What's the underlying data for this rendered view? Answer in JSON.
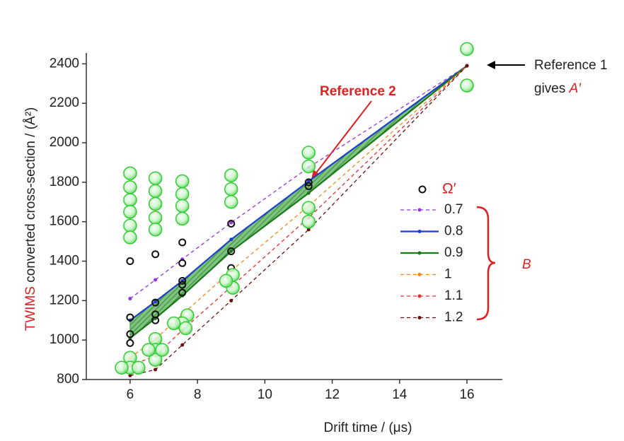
{
  "chart_data": {
    "type": "line",
    "x_label": "Drift time / (μs)",
    "y_label_prefix": "TWIMS",
    "y_label": " converted cross-section / (Å²)",
    "xlim": [
      4.7,
      17.05
    ],
    "ylim": [
      800,
      2455
    ],
    "xticks": [
      6,
      8,
      10,
      12,
      14,
      16
    ],
    "yticks": [
      800,
      1000,
      1200,
      1400,
      1600,
      1800,
      2000,
      2200,
      2400
    ],
    "x": [
      6,
      6.75,
      7.55,
      9,
      11.3,
      16
    ],
    "band_fill": "#3a9a3a",
    "series": [
      {
        "name": "Ω′",
        "type": "scatter",
        "color": "#111111",
        "x": [
          6,
          6,
          6,
          6,
          6.75,
          6.75,
          6.75,
          6.75,
          7.55,
          7.55,
          7.55,
          7.55,
          7.55,
          9,
          9,
          9,
          11.3,
          11.3
        ],
        "values": [
          1400,
          1115,
          1030,
          985,
          1435,
          1190,
          1130,
          1100,
          1495,
          1390,
          1300,
          1280,
          1240,
          1590,
          1450,
          1365,
          1800,
          1780
        ]
      },
      {
        "name": "0.7",
        "color": "#9a33e0",
        "dash": true,
        "values": [
          1210,
          1305,
          1410,
          1595,
          1875,
          2390
        ]
      },
      {
        "name": "0.8",
        "color": "#1f3fcc",
        "dash": false,
        "values": [
          1100,
          1195,
          1300,
          1510,
          1805,
          2390
        ]
      },
      {
        "name": "0.9",
        "color": "#1a7a1a",
        "dash": false,
        "values": [
          1010,
          1110,
          1225,
          1450,
          1745,
          2390
        ]
      },
      {
        "name": "1",
        "color": "#f08a20",
        "dash": true,
        "values": [
          910,
          1005,
          1130,
          1350,
          1680,
          2390
        ]
      },
      {
        "name": "1.1",
        "color": "#e03030",
        "dash": true,
        "values": [
          870,
          920,
          1050,
          1270,
          1620,
          2390
        ]
      },
      {
        "name": "1.2",
        "color": "#6b0f0f",
        "dash": true,
        "values": [
          820,
          850,
          975,
          1200,
          1560,
          2390
        ]
      },
      {
        "type": "scatter",
        "color": "#33cc33",
        "x": [
          6,
          6,
          6,
          6,
          6,
          6,
          6,
          6,
          5.75,
          6.25,
          6.75,
          6.75,
          6.75,
          6.75,
          6.75,
          6.75,
          6.75,
          6.75,
          6.55,
          6.95,
          7.55,
          7.55,
          7.55,
          7.55,
          7.7,
          7.55,
          7.65,
          7.3,
          9,
          9,
          9,
          9.05,
          9.05,
          8.85,
          11.3,
          11.3,
          11.3,
          11.3,
          16,
          16
        ],
        "values": [
          1845,
          1775,
          1710,
          1650,
          1580,
          1520,
          910,
          860,
          860,
          860,
          1820,
          1755,
          1690,
          1620,
          1560,
          1005,
          950,
          900,
          950,
          950,
          1805,
          1740,
          1680,
          1615,
          1125,
          1085,
          1060,
          1085,
          1835,
          1765,
          1700,
          1330,
          1265,
          1300,
          1950,
          1880,
          1670,
          1600,
          2475,
          2290
        ]
      }
    ],
    "annotations": {
      "ref1_line1": "Reference 1",
      "ref1_line2": "gives ",
      "ref1_symbol": "A′",
      "ref2": "Reference 2",
      "brace_label": "B"
    }
  }
}
